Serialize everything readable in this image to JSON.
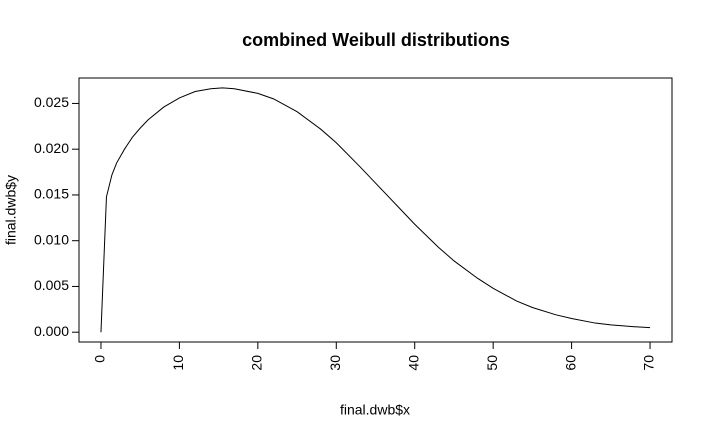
{
  "chart_data": {
    "type": "line",
    "title": "combined Weibull distributions",
    "x_label": "final.dwb$x",
    "y_label": "final.dwb$y",
    "x": [
      0,
      0.7,
      1.4,
      2,
      3,
      4,
      5,
      6,
      8,
      10,
      12,
      14,
      15.5,
      17,
      20,
      22,
      25,
      28,
      30,
      33,
      35,
      38,
      40,
      43,
      45,
      48,
      50,
      53,
      55,
      58,
      60,
      63,
      65,
      68,
      70
    ],
    "values": [
      0,
      0.0148,
      0.0172,
      0.0185,
      0.02,
      0.0213,
      0.0223,
      0.0232,
      0.0246,
      0.0256,
      0.0263,
      0.0266,
      0.0267,
      0.0266,
      0.0261,
      0.0255,
      0.0241,
      0.0222,
      0.0207,
      0.0181,
      0.0163,
      0.0136,
      0.0118,
      0.0093,
      0.0078,
      0.0059,
      0.0048,
      0.0034,
      0.0027,
      0.0019,
      0.0015,
      0.001,
      0.0008,
      0.0006,
      0.0005
    ],
    "color": "#000000",
    "xlim": [
      -2.8,
      72.8
    ],
    "xticks": [
      0,
      10,
      20,
      30,
      40,
      50,
      60,
      70
    ],
    "ylim": [
      -0.00107,
      0.02778
    ],
    "yticks": [
      {
        "value": 0,
        "label": "0.000"
      },
      {
        "value": 0.005,
        "label": "0.005"
      },
      {
        "value": 0.01,
        "label": "0.010"
      },
      {
        "value": 0.015,
        "label": "0.015"
      },
      {
        "value": 0.02,
        "label": "0.020"
      },
      {
        "value": 0.025,
        "label": "0.025"
      }
    ]
  }
}
